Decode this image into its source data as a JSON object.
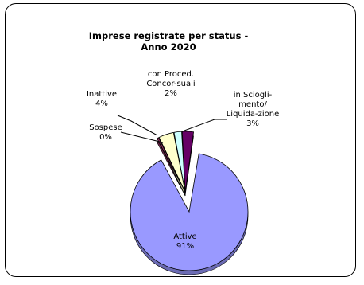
{
  "chart_data": {
    "type": "pie",
    "title": "Imprese registrate per status - Anno 2020",
    "title_lines": [
      "Imprese registrate per status -",
      "Anno 2020"
    ],
    "slices": [
      {
        "name": "Attive",
        "value": 91,
        "value_label": "91%",
        "label_lines": [
          "Attive"
        ],
        "color": "#9999ff",
        "exploded": false
      },
      {
        "name": "Sospese",
        "value": 0,
        "value_label": "0%",
        "label_lines": [
          "Sospese"
        ],
        "color": "#993366",
        "exploded": true
      },
      {
        "name": "Inattive",
        "value": 4,
        "value_label": "4%",
        "label_lines": [
          "Inattive"
        ],
        "color": "#ffffcc",
        "exploded": true
      },
      {
        "name": "con Proced. Concor-suali",
        "value": 2,
        "value_label": "2%",
        "label_lines": [
          "con Proced.",
          "Concor-suali"
        ],
        "color": "#ccffff",
        "exploded": true
      },
      {
        "name": "in Sciogli-mento/ Liquida-zione",
        "value": 3,
        "value_label": "3%",
        "label_lines": [
          "in Sciogli-",
          "mento/",
          "Liquida-zione"
        ],
        "color": "#660066",
        "exploded": true
      }
    ],
    "style": "3d-exploded"
  }
}
